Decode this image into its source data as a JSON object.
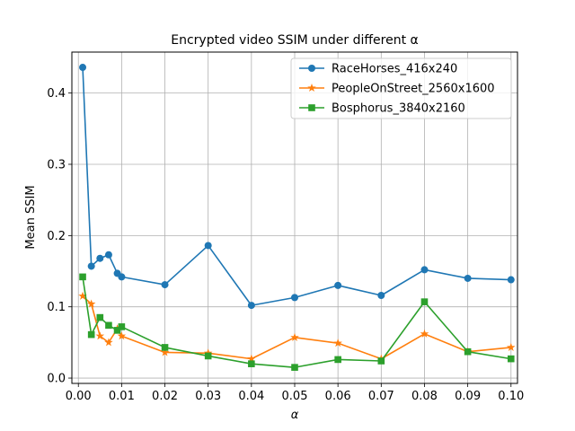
{
  "chart_data": {
    "type": "line",
    "title": "Encrypted video SSIM under different α",
    "xlabel": "α",
    "ylabel": "Mean SSIM",
    "xlim": [
      -0.0015,
      0.1015
    ],
    "ylim": [
      -0.0075,
      0.4575
    ],
    "xticks": [
      0.0,
      0.01,
      0.02,
      0.03,
      0.04,
      0.05,
      0.06,
      0.07,
      0.08,
      0.09,
      0.1
    ],
    "xtick_labels": [
      "0.00",
      "0.01",
      "0.02",
      "0.03",
      "0.04",
      "0.05",
      "0.06",
      "0.07",
      "0.08",
      "0.09",
      "0.10"
    ],
    "yticks": [
      0.0,
      0.1,
      0.2,
      0.3,
      0.4
    ],
    "ytick_labels": [
      "0.0",
      "0.1",
      "0.2",
      "0.3",
      "0.4"
    ],
    "grid": true,
    "legend_position": "top-right",
    "x": [
      0.001,
      0.003,
      0.005,
      0.007,
      0.009,
      0.01,
      0.02,
      0.03,
      0.04,
      0.05,
      0.06,
      0.07,
      0.08,
      0.09,
      0.1
    ],
    "series": [
      {
        "name": "RaceHorses_416x240",
        "color": "#1f77b4",
        "marker": "circle",
        "values": [
          0.436,
          0.157,
          0.168,
          0.173,
          0.147,
          0.142,
          0.131,
          0.186,
          0.102,
          0.113,
          0.13,
          0.116,
          0.152,
          0.14,
          0.138
        ]
      },
      {
        "name": "PeopleOnStreet_2560x1600",
        "color": "#ff7f0e",
        "marker": "star",
        "values": [
          0.115,
          0.104,
          0.059,
          0.05,
          0.069,
          0.059,
          0.036,
          0.035,
          0.027,
          0.057,
          0.049,
          0.027,
          0.062,
          0.037,
          0.043
        ]
      },
      {
        "name": "Bosphorus_3840x2160",
        "color": "#2ca02c",
        "marker": "square",
        "values": [
          0.142,
          0.061,
          0.085,
          0.074,
          0.067,
          0.072,
          0.043,
          0.031,
          0.02,
          0.015,
          0.026,
          0.024,
          0.107,
          0.037,
          0.027
        ]
      }
    ]
  }
}
